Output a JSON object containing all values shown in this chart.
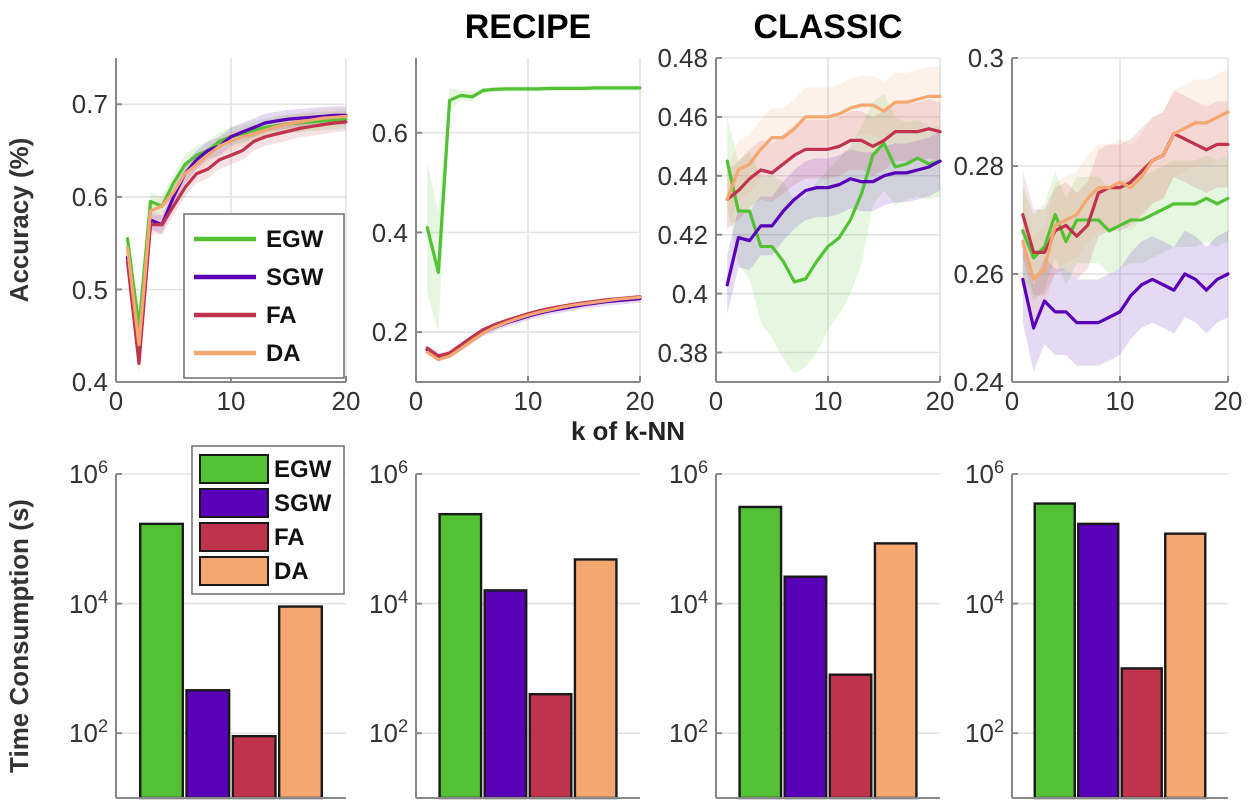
{
  "chart_data": [
    {
      "type": "line",
      "ylabel": "Accuracy (%)",
      "x": [
        1,
        2,
        3,
        4,
        5,
        6,
        7,
        8,
        9,
        10,
        11,
        12,
        13,
        14,
        15,
        16,
        17,
        18,
        19,
        20
      ],
      "xlim": [
        0,
        20
      ],
      "xticks": [
        0,
        10,
        20
      ],
      "ylim": [
        0.4,
        0.75
      ],
      "yticks": [
        0.4,
        0.5,
        0.6,
        0.7
      ],
      "grid": true,
      "legend": "bottom right",
      "series": [
        {
          "name": "EGW",
          "color": "#52c234",
          "values": [
            0.555,
            0.46,
            0.595,
            0.59,
            0.615,
            0.635,
            0.645,
            0.65,
            0.66,
            0.665,
            0.668,
            0.672,
            0.675,
            0.677,
            0.679,
            0.68,
            0.681,
            0.682,
            0.683,
            0.684
          ],
          "lower": [
            0.545,
            0.45,
            0.585,
            0.58,
            0.605,
            0.625,
            0.635,
            0.64,
            0.65,
            0.655,
            0.658,
            0.662,
            0.665,
            0.667,
            0.669,
            0.67,
            0.671,
            0.672,
            0.673,
            0.674
          ],
          "upper": [
            0.565,
            0.47,
            0.605,
            0.6,
            0.625,
            0.645,
            0.655,
            0.66,
            0.67,
            0.675,
            0.678,
            0.682,
            0.685,
            0.687,
            0.689,
            0.69,
            0.691,
            0.692,
            0.693,
            0.694
          ]
        },
        {
          "name": "SGW",
          "color": "#5a00b8",
          "values": [
            0.535,
            0.43,
            0.575,
            0.57,
            0.6,
            0.625,
            0.64,
            0.65,
            0.655,
            0.665,
            0.67,
            0.675,
            0.68,
            0.682,
            0.684,
            0.685,
            0.686,
            0.687,
            0.688,
            0.688
          ],
          "lower": [
            0.525,
            0.42,
            0.565,
            0.56,
            0.59,
            0.615,
            0.63,
            0.64,
            0.645,
            0.655,
            0.66,
            0.665,
            0.67,
            0.672,
            0.674,
            0.675,
            0.676,
            0.677,
            0.678,
            0.678
          ],
          "upper": [
            0.545,
            0.44,
            0.585,
            0.58,
            0.61,
            0.635,
            0.65,
            0.66,
            0.665,
            0.675,
            0.68,
            0.685,
            0.69,
            0.692,
            0.694,
            0.695,
            0.696,
            0.697,
            0.698,
            0.698
          ]
        },
        {
          "name": "FA",
          "color": "#c0334d",
          "values": [
            0.53,
            0.42,
            0.57,
            0.57,
            0.59,
            0.61,
            0.625,
            0.63,
            0.64,
            0.645,
            0.65,
            0.66,
            0.665,
            0.668,
            0.671,
            0.674,
            0.676,
            0.678,
            0.68,
            0.681
          ],
          "lower": [
            0.52,
            0.41,
            0.56,
            0.56,
            0.58,
            0.6,
            0.615,
            0.62,
            0.63,
            0.635,
            0.64,
            0.65,
            0.655,
            0.658,
            0.661,
            0.664,
            0.666,
            0.668,
            0.67,
            0.671
          ],
          "upper": [
            0.54,
            0.43,
            0.58,
            0.58,
            0.6,
            0.62,
            0.635,
            0.64,
            0.65,
            0.655,
            0.66,
            0.67,
            0.675,
            0.678,
            0.681,
            0.684,
            0.686,
            0.688,
            0.69,
            0.691
          ]
        },
        {
          "name": "DA",
          "color": "#f4a770",
          "values": [
            0.545,
            0.44,
            0.585,
            0.59,
            0.605,
            0.625,
            0.635,
            0.645,
            0.655,
            0.66,
            0.665,
            0.668,
            0.672,
            0.676,
            0.679,
            0.681,
            0.683,
            0.685,
            0.686,
            0.687
          ],
          "lower": [
            0.535,
            0.43,
            0.575,
            0.58,
            0.595,
            0.615,
            0.625,
            0.635,
            0.645,
            0.65,
            0.655,
            0.658,
            0.662,
            0.666,
            0.669,
            0.671,
            0.673,
            0.675,
            0.676,
            0.677
          ],
          "upper": [
            0.555,
            0.45,
            0.595,
            0.6,
            0.615,
            0.635,
            0.645,
            0.655,
            0.665,
            0.67,
            0.675,
            0.678,
            0.682,
            0.686,
            0.689,
            0.691,
            0.693,
            0.695,
            0.696,
            0.697
          ]
        }
      ]
    },
    {
      "type": "line",
      "title": "RECIPE",
      "xlabel": "k of k-NN",
      "x": [
        1,
        2,
        3,
        4,
        5,
        6,
        7,
        8,
        9,
        10,
        11,
        12,
        13,
        14,
        15,
        16,
        17,
        18,
        19,
        20
      ],
      "xlim": [
        0,
        20
      ],
      "xticks": [
        0,
        10,
        20
      ],
      "ylim": [
        0.1,
        0.75
      ],
      "yticks": [
        0.2,
        0.4,
        0.6
      ],
      "grid": true,
      "series": [
        {
          "color": "#52c234",
          "values": [
            0.41,
            0.32,
            0.665,
            0.675,
            0.672,
            0.685,
            0.687,
            0.688,
            0.688,
            0.688,
            0.688,
            0.689,
            0.689,
            0.689,
            0.689,
            0.69,
            0.69,
            0.69,
            0.69,
            0.69
          ],
          "lower": [
            0.28,
            0.2,
            0.64,
            0.665,
            0.662,
            0.68,
            0.682,
            0.683,
            0.683,
            0.683,
            0.683,
            0.684,
            0.684,
            0.684,
            0.684,
            0.685,
            0.685,
            0.685,
            0.685,
            0.685
          ],
          "upper": [
            0.54,
            0.44,
            0.69,
            0.685,
            0.682,
            0.69,
            0.692,
            0.693,
            0.693,
            0.693,
            0.693,
            0.694,
            0.694,
            0.694,
            0.694,
            0.695,
            0.695,
            0.695,
            0.695,
            0.695
          ]
        },
        {
          "color": "#5a00b8",
          "values": [
            0.165,
            0.15,
            0.155,
            0.17,
            0.185,
            0.2,
            0.21,
            0.218,
            0.225,
            0.232,
            0.238,
            0.243,
            0.247,
            0.251,
            0.255,
            0.258,
            0.261,
            0.263,
            0.265,
            0.267
          ],
          "lower": [
            0.157,
            0.142,
            0.147,
            0.162,
            0.177,
            0.192,
            0.202,
            0.21,
            0.217,
            0.224,
            0.23,
            0.235,
            0.239,
            0.243,
            0.247,
            0.25,
            0.253,
            0.255,
            0.257,
            0.259
          ],
          "upper": [
            0.173,
            0.158,
            0.163,
            0.178,
            0.193,
            0.208,
            0.218,
            0.226,
            0.233,
            0.24,
            0.246,
            0.251,
            0.255,
            0.259,
            0.263,
            0.266,
            0.269,
            0.271,
            0.273,
            0.275
          ]
        },
        {
          "color": "#c0334d",
          "values": [
            0.168,
            0.152,
            0.158,
            0.174,
            0.19,
            0.205,
            0.215,
            0.223,
            0.23,
            0.237,
            0.243,
            0.248,
            0.252,
            0.256,
            0.259,
            0.262,
            0.265,
            0.267,
            0.269,
            0.271
          ]
        },
        {
          "color": "#f4a770",
          "values": [
            0.16,
            0.145,
            0.152,
            0.167,
            0.183,
            0.198,
            0.21,
            0.219,
            0.227,
            0.234,
            0.24,
            0.245,
            0.25,
            0.254,
            0.257,
            0.26,
            0.263,
            0.266,
            0.268,
            0.27
          ]
        }
      ]
    },
    {
      "type": "line",
      "title": "CLASSIC",
      "x": [
        1,
        2,
        3,
        4,
        5,
        6,
        7,
        8,
        9,
        10,
        11,
        12,
        13,
        14,
        15,
        16,
        17,
        18,
        19,
        20
      ],
      "xlim": [
        0,
        20
      ],
      "xticks": [
        0,
        10,
        20
      ],
      "ylim": [
        0.37,
        0.48
      ],
      "yticks": [
        0.38,
        0.4,
        0.42,
        0.44,
        0.46,
        0.48
      ],
      "grid": true,
      "series": [
        {
          "color": "#52c234",
          "values": [
            0.445,
            0.428,
            0.428,
            0.416,
            0.416,
            0.411,
            0.404,
            0.405,
            0.411,
            0.416,
            0.419,
            0.425,
            0.434,
            0.447,
            0.451,
            0.443,
            0.444,
            0.446,
            0.444,
            0.445
          ],
          "lower": [
            0.43,
            0.41,
            0.405,
            0.39,
            0.385,
            0.378,
            0.373,
            0.375,
            0.38,
            0.388,
            0.393,
            0.4,
            0.41,
            0.43,
            0.435,
            0.43,
            0.432,
            0.433,
            0.432,
            0.433
          ],
          "upper": [
            0.46,
            0.445,
            0.448,
            0.44,
            0.44,
            0.438,
            0.432,
            0.433,
            0.438,
            0.442,
            0.446,
            0.45,
            0.457,
            0.465,
            0.468,
            0.46,
            0.458,
            0.459,
            0.457,
            0.457
          ]
        },
        {
          "color": "#5a00b8",
          "values": [
            0.403,
            0.419,
            0.418,
            0.423,
            0.423,
            0.428,
            0.432,
            0.435,
            0.436,
            0.436,
            0.437,
            0.439,
            0.438,
            0.438,
            0.44,
            0.441,
            0.441,
            0.442,
            0.443,
            0.445
          ],
          "lower": [
            0.393,
            0.409,
            0.408,
            0.413,
            0.413,
            0.418,
            0.422,
            0.425,
            0.426,
            0.426,
            0.427,
            0.429,
            0.428,
            0.428,
            0.43,
            0.431,
            0.431,
            0.432,
            0.433,
            0.435
          ],
          "upper": [
            0.413,
            0.429,
            0.428,
            0.433,
            0.433,
            0.438,
            0.442,
            0.445,
            0.446,
            0.446,
            0.447,
            0.449,
            0.448,
            0.448,
            0.45,
            0.451,
            0.451,
            0.452,
            0.453,
            0.455
          ]
        },
        {
          "color": "#c0334d",
          "values": [
            0.432,
            0.435,
            0.439,
            0.442,
            0.441,
            0.444,
            0.447,
            0.449,
            0.449,
            0.449,
            0.45,
            0.452,
            0.452,
            0.45,
            0.452,
            0.455,
            0.455,
            0.455,
            0.456,
            0.455
          ],
          "lower": [
            0.422,
            0.425,
            0.429,
            0.432,
            0.431,
            0.434,
            0.437,
            0.439,
            0.439,
            0.439,
            0.44,
            0.442,
            0.442,
            0.44,
            0.442,
            0.445,
            0.445,
            0.445,
            0.446,
            0.445
          ],
          "upper": [
            0.442,
            0.445,
            0.449,
            0.452,
            0.451,
            0.454,
            0.457,
            0.459,
            0.459,
            0.459,
            0.46,
            0.462,
            0.462,
            0.46,
            0.462,
            0.465,
            0.465,
            0.465,
            0.466,
            0.465
          ]
        },
        {
          "color": "#f4a770",
          "values": [
            0.432,
            0.442,
            0.444,
            0.449,
            0.453,
            0.453,
            0.456,
            0.46,
            0.46,
            0.46,
            0.461,
            0.463,
            0.464,
            0.464,
            0.462,
            0.465,
            0.465,
            0.466,
            0.467,
            0.467
          ],
          "lower": [
            0.422,
            0.432,
            0.434,
            0.439,
            0.443,
            0.443,
            0.446,
            0.45,
            0.45,
            0.45,
            0.451,
            0.453,
            0.454,
            0.454,
            0.452,
            0.455,
            0.455,
            0.456,
            0.457,
            0.457
          ],
          "upper": [
            0.442,
            0.452,
            0.454,
            0.459,
            0.463,
            0.463,
            0.466,
            0.47,
            0.47,
            0.47,
            0.471,
            0.473,
            0.474,
            0.474,
            0.472,
            0.475,
            0.475,
            0.476,
            0.477,
            0.477
          ]
        }
      ]
    },
    {
      "type": "line",
      "x": [
        1,
        2,
        3,
        4,
        5,
        6,
        7,
        8,
        9,
        10,
        11,
        12,
        13,
        14,
        15,
        16,
        17,
        18,
        19,
        20
      ],
      "xlim": [
        0,
        20
      ],
      "xticks": [
        0,
        10,
        20
      ],
      "ylim": [
        0.24,
        0.3
      ],
      "yticks": [
        0.24,
        0.26,
        0.28,
        0.3
      ],
      "grid": true,
      "series": [
        {
          "color": "#52c234",
          "values": [
            0.268,
            0.263,
            0.265,
            0.271,
            0.266,
            0.27,
            0.27,
            0.27,
            0.268,
            0.269,
            0.27,
            0.27,
            0.271,
            0.272,
            0.273,
            0.273,
            0.273,
            0.274,
            0.273,
            0.274
          ],
          "lower": [
            0.26,
            0.255,
            0.257,
            0.263,
            0.258,
            0.262,
            0.262,
            0.262,
            0.26,
            0.261,
            0.262,
            0.262,
            0.263,
            0.264,
            0.265,
            0.265,
            0.265,
            0.266,
            0.265,
            0.266
          ],
          "upper": [
            0.276,
            0.271,
            0.273,
            0.279,
            0.274,
            0.278,
            0.278,
            0.278,
            0.276,
            0.277,
            0.278,
            0.278,
            0.279,
            0.28,
            0.281,
            0.281,
            0.281,
            0.282,
            0.281,
            0.282
          ]
        },
        {
          "color": "#5a00b8",
          "values": [
            0.259,
            0.25,
            0.255,
            0.253,
            0.253,
            0.251,
            0.251,
            0.251,
            0.252,
            0.253,
            0.256,
            0.258,
            0.259,
            0.258,
            0.257,
            0.26,
            0.259,
            0.257,
            0.259,
            0.26
          ],
          "lower": [
            0.251,
            0.242,
            0.247,
            0.245,
            0.245,
            0.243,
            0.243,
            0.243,
            0.244,
            0.245,
            0.248,
            0.25,
            0.251,
            0.25,
            0.249,
            0.252,
            0.251,
            0.249,
            0.251,
            0.252
          ],
          "upper": [
            0.267,
            0.258,
            0.263,
            0.261,
            0.261,
            0.259,
            0.259,
            0.259,
            0.26,
            0.261,
            0.264,
            0.266,
            0.267,
            0.266,
            0.265,
            0.268,
            0.267,
            0.265,
            0.267,
            0.268
          ]
        },
        {
          "color": "#c0334d",
          "values": [
            0.271,
            0.264,
            0.264,
            0.268,
            0.269,
            0.267,
            0.269,
            0.275,
            0.276,
            0.276,
            0.277,
            0.279,
            0.281,
            0.282,
            0.286,
            0.285,
            0.284,
            0.283,
            0.284,
            0.284
          ],
          "lower": [
            0.263,
            0.256,
            0.256,
            0.26,
            0.261,
            0.259,
            0.261,
            0.267,
            0.268,
            0.268,
            0.269,
            0.271,
            0.273,
            0.274,
            0.278,
            0.277,
            0.276,
            0.275,
            0.276,
            0.276
          ],
          "upper": [
            0.279,
            0.272,
            0.272,
            0.276,
            0.277,
            0.275,
            0.277,
            0.283,
            0.284,
            0.284,
            0.285,
            0.287,
            0.289,
            0.29,
            0.294,
            0.293,
            0.292,
            0.291,
            0.292,
            0.292
          ]
        },
        {
          "color": "#f4a770",
          "values": [
            0.266,
            0.259,
            0.261,
            0.269,
            0.27,
            0.271,
            0.274,
            0.276,
            0.276,
            0.277,
            0.276,
            0.278,
            0.281,
            0.282,
            0.286,
            0.287,
            0.288,
            0.288,
            0.289,
            0.29
          ],
          "lower": [
            0.258,
            0.251,
            0.253,
            0.261,
            0.262,
            0.263,
            0.266,
            0.268,
            0.268,
            0.269,
            0.268,
            0.27,
            0.273,
            0.274,
            0.278,
            0.279,
            0.28,
            0.28,
            0.281,
            0.282
          ],
          "upper": [
            0.274,
            0.267,
            0.269,
            0.277,
            0.278,
            0.279,
            0.282,
            0.284,
            0.284,
            0.285,
            0.284,
            0.286,
            0.289,
            0.29,
            0.294,
            0.295,
            0.296,
            0.296,
            0.297,
            0.298
          ]
        }
      ]
    },
    {
      "type": "bar",
      "ylabel": "Time Consumption (s)",
      "categories": [
        null
      ],
      "log": true,
      "ylim": [
        10,
        1000000
      ],
      "yticks": [
        {
          "value": 100,
          "label": "10$^{2}$"
        },
        {
          "value": 10000,
          "label": "10$^{4}$"
        },
        {
          "value": 1000000,
          "label": "10$^{6}$"
        }
      ],
      "grid": "y",
      "tick_labels": "y",
      "legend": "top right",
      "series": [
        {
          "name": "EGW",
          "color": "#52c234",
          "values": [
            170000
          ]
        },
        {
          "name": "SGW",
          "color": "#5a00b8",
          "values": [
            460
          ]
        },
        {
          "name": "FA",
          "color": "#c0334d",
          "values": [
            90
          ]
        },
        {
          "name": "DA",
          "color": "#f4a770",
          "values": [
            9000
          ]
        }
      ]
    },
    {
      "type": "bar",
      "categories": [
        null
      ],
      "log": true,
      "ylim": [
        10,
        1000000
      ],
      "yticks": [
        {
          "value": 100,
          "label": "10$^{2}$"
        },
        {
          "value": 10000,
          "label": "10$^{4}$"
        },
        {
          "value": 1000000,
          "label": "10$^{6}$"
        }
      ],
      "grid": "y",
      "tick_labels": "y",
      "series": [
        {
          "color": "#52c234",
          "values": [
            240000
          ]
        },
        {
          "color": "#5a00b8",
          "values": [
            16000
          ]
        },
        {
          "color": "#c0334d",
          "values": [
            400
          ]
        },
        {
          "color": "#f4a770",
          "values": [
            48000
          ]
        }
      ]
    },
    {
      "type": "bar",
      "categories": [
        null
      ],
      "log": true,
      "ylim": [
        10,
        1000000
      ],
      "yticks": [
        {
          "value": 100,
          "label": "10$^{2}$"
        },
        {
          "value": 10000,
          "label": "10$^{4}$"
        },
        {
          "value": 1000000,
          "label": "10$^{6}$"
        }
      ],
      "grid": "y",
      "tick_labels": "y",
      "series": [
        {
          "color": "#52c234",
          "values": [
            310000
          ]
        },
        {
          "color": "#5a00b8",
          "values": [
            26000
          ]
        },
        {
          "color": "#c0334d",
          "values": [
            800
          ]
        },
        {
          "color": "#f4a770",
          "values": [
            85000
          ]
        }
      ]
    },
    {
      "type": "bar",
      "categories": [
        null
      ],
      "log": true,
      "ylim": [
        10,
        1000000
      ],
      "yticks": [
        {
          "value": 100,
          "label": "10$^{2}$"
        },
        {
          "value": 10000,
          "label": "10$^{4}$"
        },
        {
          "value": 1000000,
          "label": "10$^{6}$"
        }
      ],
      "grid": "y",
      "tick_labels": "y",
      "series": [
        {
          "color": "#52c234",
          "values": [
            350000
          ]
        },
        {
          "color": "#5a00b8",
          "values": [
            170000
          ]
        },
        {
          "color": "#c0334d",
          "values": [
            1000
          ]
        },
        {
          "color": "#f4a770",
          "values": [
            120000
          ]
        }
      ]
    }
  ]
}
